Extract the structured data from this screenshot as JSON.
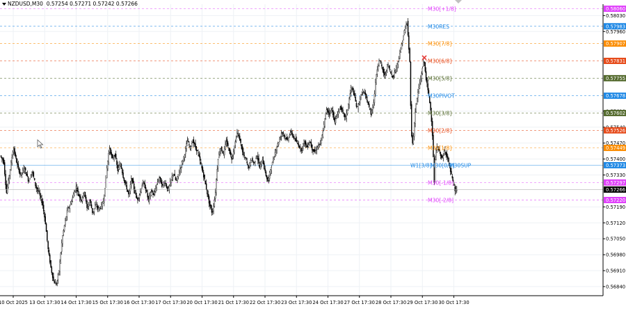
{
  "header": {
    "symbol": "NZDUSD,M30",
    "ohlc": "0.57254 0.57271 0.57242 0.57266"
  },
  "colors": {
    "grid": "#eef1f5",
    "candle": "#000000",
    "current_price_bg": "#000000"
  },
  "chart_data": {
    "type": "candlestick",
    "symbol": "NZDUSD",
    "timeframe": "M30",
    "ylim": [
      0.568,
      0.5808
    ],
    "y_ticks": [
      "0.58030",
      "0.57960",
      "0.57610",
      "0.57540",
      "0.57470",
      "0.57400",
      "0.57330",
      "0.57190",
      "0.57120",
      "0.57050",
      "0.56980",
      "0.56910",
      "0.56840"
    ],
    "x_tick_labels": [
      "10 Oct 2025",
      "13 Oct 17:30",
      "14 Oct 17:30",
      "15 Oct 17:30",
      "16 Oct 17:30",
      "17 Oct 17:30",
      "20 Oct 17:30",
      "21 Oct 17:30",
      "22 Oct 17:30",
      "23 Oct 17:30",
      "24 Oct 17:30",
      "27 Oct 17:30",
      "28 Oct 17:30",
      "29 Oct 17:30",
      "30 Oct 17:30"
    ],
    "price_path": [
      [
        0,
        0.5742
      ],
      [
        6,
        0.5739
      ],
      [
        10,
        0.5725
      ],
      [
        15,
        0.5735
      ],
      [
        20,
        0.5745
      ],
      [
        25,
        0.5738
      ],
      [
        30,
        0.5733
      ],
      [
        36,
        0.5736
      ],
      [
        42,
        0.573
      ],
      [
        47,
        0.5735
      ],
      [
        52,
        0.5728
      ],
      [
        57,
        0.5725
      ],
      [
        62,
        0.572
      ],
      [
        66,
        0.5712
      ],
      [
        70,
        0.57
      ],
      [
        74,
        0.5692
      ],
      [
        78,
        0.5686
      ],
      [
        82,
        0.5685
      ],
      [
        86,
        0.5692
      ],
      [
        90,
        0.5705
      ],
      [
        94,
        0.5712
      ],
      [
        98,
        0.5718
      ],
      [
        102,
        0.572
      ],
      [
        106,
        0.5724
      ],
      [
        110,
        0.5728
      ],
      [
        114,
        0.5724
      ],
      [
        118,
        0.5722
      ],
      [
        122,
        0.5726
      ],
      [
        126,
        0.5718
      ],
      [
        130,
        0.5722
      ],
      [
        134,
        0.5716
      ],
      [
        138,
        0.572
      ],
      [
        142,
        0.5718
      ],
      [
        146,
        0.5719
      ],
      [
        150,
        0.5722
      ],
      [
        154,
        0.5735
      ],
      [
        158,
        0.5745
      ],
      [
        162,
        0.574
      ],
      [
        166,
        0.5742
      ],
      [
        170,
        0.5735
      ],
      [
        174,
        0.5738
      ],
      [
        178,
        0.5732
      ],
      [
        182,
        0.5728
      ],
      [
        186,
        0.5724
      ],
      [
        190,
        0.5732
      ],
      [
        194,
        0.5726
      ],
      [
        198,
        0.5722
      ],
      [
        202,
        0.5725
      ],
      [
        206,
        0.573
      ],
      [
        210,
        0.5727
      ],
      [
        214,
        0.5722
      ],
      [
        218,
        0.5726
      ],
      [
        222,
        0.5724
      ],
      [
        226,
        0.5729
      ],
      [
        230,
        0.5732
      ],
      [
        234,
        0.5728
      ],
      [
        238,
        0.573
      ],
      [
        242,
        0.5726
      ],
      [
        246,
        0.573
      ],
      [
        250,
        0.5734
      ],
      [
        254,
        0.573
      ],
      [
        258,
        0.5734
      ],
      [
        262,
        0.5738
      ],
      [
        266,
        0.5742
      ],
      [
        270,
        0.5748
      ],
      [
        274,
        0.5745
      ],
      [
        278,
        0.5748
      ],
      [
        282,
        0.5745
      ],
      [
        286,
        0.5742
      ],
      [
        290,
        0.5737
      ],
      [
        294,
        0.5732
      ],
      [
        298,
        0.5726
      ],
      [
        302,
        0.572
      ],
      [
        306,
        0.5716
      ],
      [
        310,
        0.5724
      ],
      [
        314,
        0.574
      ],
      [
        318,
        0.5745
      ],
      [
        322,
        0.5742
      ],
      [
        326,
        0.5748
      ],
      [
        330,
        0.5744
      ],
      [
        334,
        0.574
      ],
      [
        338,
        0.5746
      ],
      [
        342,
        0.5752
      ],
      [
        346,
        0.5748
      ],
      [
        350,
        0.5742
      ],
      [
        354,
        0.574
      ],
      [
        358,
        0.5736
      ],
      [
        362,
        0.574
      ],
      [
        366,
        0.5738
      ],
      [
        370,
        0.5742
      ],
      [
        374,
        0.5736
      ],
      [
        378,
        0.574
      ],
      [
        382,
        0.5734
      ],
      [
        386,
        0.573
      ],
      [
        390,
        0.5736
      ],
      [
        394,
        0.574
      ],
      [
        398,
        0.5745
      ],
      [
        402,
        0.5748
      ],
      [
        406,
        0.5752
      ],
      [
        410,
        0.575
      ],
      [
        414,
        0.5748
      ],
      [
        418,
        0.5752
      ],
      [
        422,
        0.575
      ],
      [
        426,
        0.5748
      ],
      [
        430,
        0.5746
      ],
      [
        434,
        0.5744
      ],
      [
        438,
        0.5748
      ],
      [
        442,
        0.5745
      ],
      [
        446,
        0.5748
      ],
      [
        450,
        0.5744
      ],
      [
        454,
        0.5743
      ],
      [
        458,
        0.5746
      ],
      [
        462,
        0.5747
      ],
      [
        466,
        0.5754
      ],
      [
        470,
        0.5762
      ],
      [
        474,
        0.576
      ],
      [
        478,
        0.5762
      ],
      [
        482,
        0.5756
      ],
      [
        486,
        0.576
      ],
      [
        490,
        0.5763
      ],
      [
        494,
        0.576
      ],
      [
        498,
        0.5758
      ],
      [
        502,
        0.5765
      ],
      [
        506,
        0.5772
      ],
      [
        510,
        0.5768
      ],
      [
        514,
        0.5762
      ],
      [
        518,
        0.5766
      ],
      [
        522,
        0.577
      ],
      [
        526,
        0.5768
      ],
      [
        530,
        0.5764
      ],
      [
        534,
        0.576
      ],
      [
        538,
        0.5765
      ],
      [
        542,
        0.5778
      ],
      [
        546,
        0.5784
      ],
      [
        550,
        0.578
      ],
      [
        554,
        0.5776
      ],
      [
        558,
        0.5782
      ],
      [
        562,
        0.5778
      ],
      [
        566,
        0.5776
      ],
      [
        570,
        0.578
      ],
      [
        574,
        0.5784
      ],
      [
        578,
        0.579
      ],
      [
        582,
        0.5796
      ],
      [
        586,
        0.58
      ],
      [
        590,
        0.5782
      ],
      [
        592,
        0.5752
      ],
      [
        594,
        0.5746
      ],
      [
        598,
        0.5762
      ],
      [
        602,
        0.577
      ],
      [
        606,
        0.5776
      ],
      [
        610,
        0.5784
      ],
      [
        613,
        0.5776
      ],
      [
        616,
        0.577
      ],
      [
        619,
        0.5764
      ],
      [
        622,
        0.5754
      ],
      [
        625,
        0.573
      ],
      [
        627,
        0.5744
      ],
      [
        630,
        0.5745
      ],
      [
        634,
        0.5742
      ],
      [
        637,
        0.574
      ],
      [
        640,
        0.5744
      ],
      [
        644,
        0.5741
      ],
      [
        648,
        0.5735
      ],
      [
        652,
        0.573
      ],
      [
        655,
        0.5726
      ],
      [
        657,
        0.57266
      ]
    ],
    "current_price": "0.57266",
    "price_badges": [
      {
        "label": "0.58060",
        "price": 0.5806,
        "color": "#e040fb",
        "style": "dashed"
      },
      {
        "label": "0.57983",
        "price": 0.57983,
        "color": "#1e88e5",
        "style": "dashed"
      },
      {
        "label": "0.57907",
        "price": 0.57907,
        "color": "#fb8c00",
        "style": "dashed"
      },
      {
        "label": "0.57831",
        "price": 0.57831,
        "color": "#e64a19",
        "style": "dashed"
      },
      {
        "label": "0.57755",
        "price": 0.57755,
        "color": "#556b2f",
        "style": "dashed"
      },
      {
        "label": "0.57678",
        "price": 0.57678,
        "color": "#1e88e5",
        "style": "dashed"
      },
      {
        "label": "0.57602",
        "price": 0.57602,
        "color": "#556b2f",
        "style": "dashed"
      },
      {
        "label": "0.57526",
        "price": 0.57526,
        "color": "#e64a19",
        "style": "dashed"
      },
      {
        "label": "0.57449",
        "price": 0.57449,
        "color": "#fb8c00",
        "style": "dashed"
      },
      {
        "label": "0.57373",
        "price": 0.57373,
        "color": "#1e88e5",
        "style": "solid"
      },
      {
        "label": "0.57297",
        "price": 0.57297,
        "color": "#e040fb",
        "style": "dashed"
      },
      {
        "label": "0.57220",
        "price": 0.5722,
        "color": "#e040fb",
        "style": "dashed"
      }
    ],
    "level_labels": [
      {
        "text": "M30[+1/8]",
        "price": 0.5806,
        "color": "#e040fb"
      },
      {
        "text": "M30RES",
        "price": 0.57983,
        "color": "#1e88e5"
      },
      {
        "text": "M30[7/8]",
        "price": 0.57907,
        "color": "#fb8c00"
      },
      {
        "text": "M30[6/8]",
        "price": 0.57831,
        "color": "#e64a19"
      },
      {
        "text": "M30[5/8]",
        "price": 0.57755,
        "color": "#556b2f"
      },
      {
        "text": "M30PIVOT",
        "price": 0.57678,
        "color": "#1e88e5"
      },
      {
        "text": "M30[3/8]",
        "price": 0.57602,
        "color": "#556b2f"
      },
      {
        "text": "M30[2/8]",
        "price": 0.57526,
        "color": "#e64a19"
      },
      {
        "text": "M30[1/8]",
        "price": 0.57449,
        "color": "#fb8c00"
      },
      {
        "text": "W1[3/8]",
        "price": 0.57373,
        "color": "#1e88e5"
      },
      {
        "text": "M30[0/8]",
        "price": 0.57373,
        "color": "#1e88e5"
      },
      {
        "text": "M30SUP",
        "price": 0.57373,
        "color": "#1e88e5"
      },
      {
        "text": "M30[-1/8]",
        "price": 0.57297,
        "color": "#e040fb"
      },
      {
        "text": "M30[-2/8]",
        "price": 0.5722,
        "color": "#e040fb"
      }
    ],
    "marker": {
      "price": 0.57845,
      "color": "#e53935"
    },
    "grid": true
  }
}
